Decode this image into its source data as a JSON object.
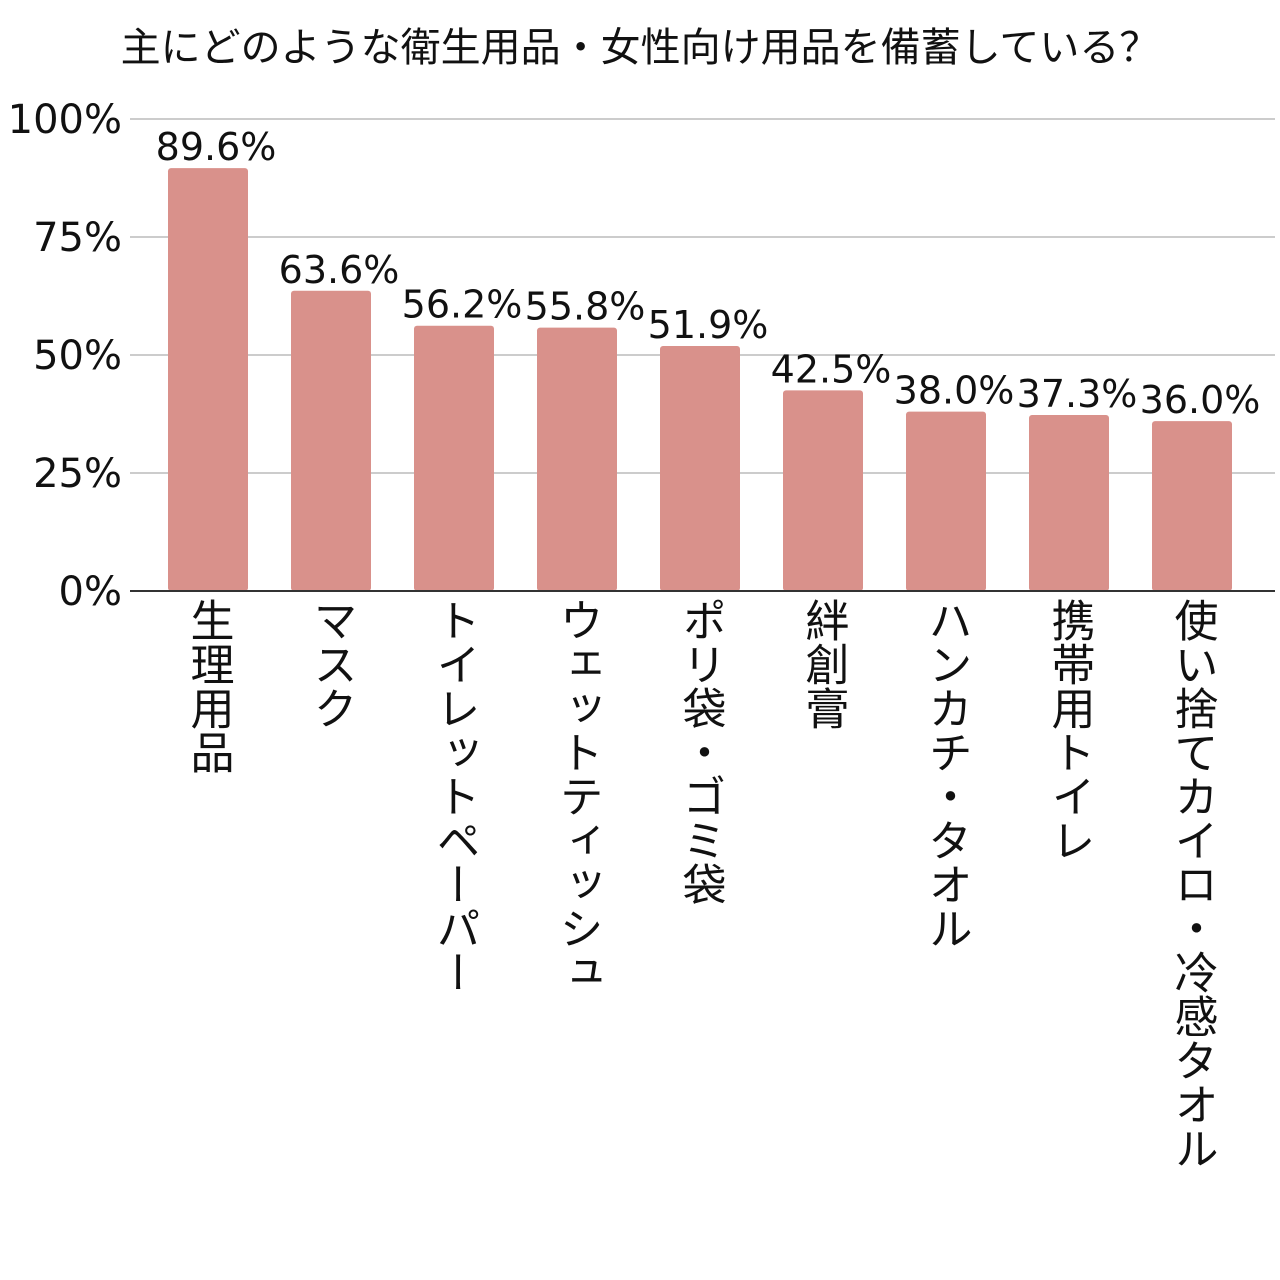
{
  "chart_data": {
    "type": "bar",
    "title": "主にどのような衛生用品・女性向け用品を備蓄している？",
    "categories": [
      "生理用品",
      "マスク",
      "トイレットペーパー",
      "ウェットティッシュ",
      "ポリ袋・ゴミ袋",
      "絆創膏",
      "ハンカチ・タオル",
      "携帯用トイレ",
      "使い捨てカイロ・冷感タオル"
    ],
    "values": [
      89.6,
      63.6,
      56.2,
      55.8,
      51.9,
      42.5,
      38.0,
      37.3,
      36.0
    ],
    "data_labels": [
      "89.6%",
      "63.6%",
      "56.2%",
      "55.8%",
      "51.9%",
      "42.5%",
      "38.0%",
      "37.3%",
      "36.0%"
    ],
    "yticks": [
      0,
      25,
      50,
      75,
      100
    ],
    "ytick_labels": [
      "0%",
      "25%",
      "50%",
      "75%",
      "100%"
    ],
    "ylim": [
      0,
      100
    ],
    "grid": true,
    "bar_color": "#d9918b",
    "grid_color": "#cccccc"
  }
}
